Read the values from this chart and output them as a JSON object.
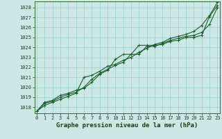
{
  "title": "Graphe pression niveau de la mer (hPa)",
  "x_values": [
    0,
    1,
    2,
    3,
    4,
    5,
    6,
    7,
    8,
    9,
    10,
    11,
    12,
    13,
    14,
    15,
    16,
    17,
    18,
    19,
    20,
    21,
    22,
    23
  ],
  "xlim": [
    -0.3,
    23.3
  ],
  "ylim": [
    1017.4,
    1028.6
  ],
  "y_ticks": [
    1018,
    1019,
    1020,
    1021,
    1022,
    1023,
    1024,
    1025,
    1026,
    1027,
    1028
  ],
  "bg_color": "#cce8e4",
  "grid_color": "#99cccc",
  "line_color": "#1a5c2a",
  "line1": [
    1017.6,
    1018.5,
    1018.7,
    1019.2,
    1019.4,
    1019.7,
    1019.9,
    1020.5,
    1021.3,
    1021.7,
    1022.8,
    1023.3,
    1023.3,
    1024.2,
    1024.2,
    1024.2,
    1024.3,
    1024.6,
    1024.7,
    1025.0,
    1025.0,
    1025.2,
    1027.1,
    1028.2
  ],
  "line2": [
    1017.6,
    1018.4,
    1018.6,
    1019.0,
    1019.3,
    1019.5,
    1020.0,
    1020.8,
    1021.4,
    1021.8,
    1022.2,
    1022.5,
    1023.3,
    1023.3,
    1024.1,
    1024.1,
    1024.4,
    1024.7,
    1024.9,
    1025.1,
    1025.2,
    1025.5,
    1026.3,
    1028.0
  ],
  "line3": [
    1017.6,
    1018.2,
    1018.5,
    1018.8,
    1019.1,
    1019.4,
    1021.0,
    1021.2,
    1021.6,
    1022.1,
    1022.3,
    1022.7,
    1023.0,
    1023.5,
    1023.9,
    1024.3,
    1024.5,
    1024.9,
    1025.1,
    1025.3,
    1025.6,
    1026.2,
    1027.2,
    1028.5
  ],
  "marker": "+",
  "markersize": 3,
  "linewidth": 0.8,
  "title_fontsize": 6.5,
  "tick_fontsize": 5.0
}
